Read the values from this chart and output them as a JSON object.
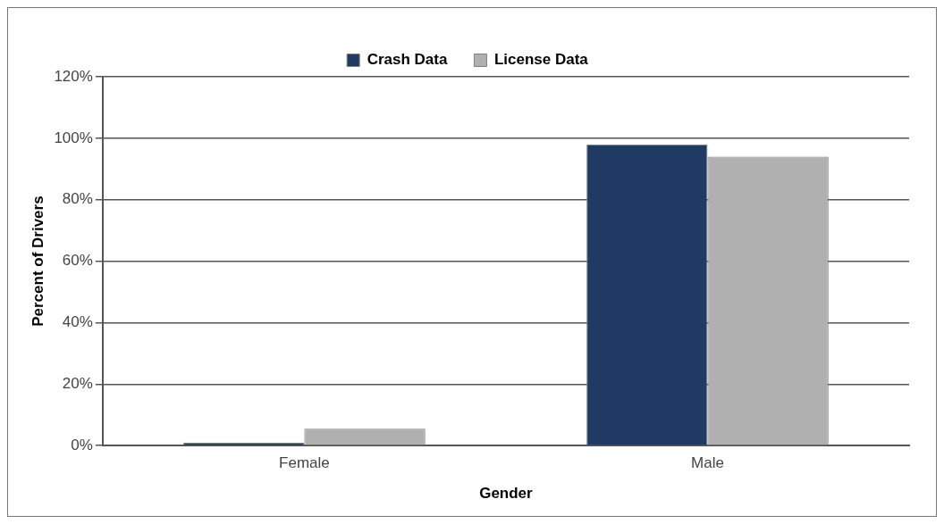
{
  "chart_data": {
    "type": "bar",
    "xlabel": "Gender",
    "ylabel": "Percent of Drivers",
    "categories": [
      "Female",
      "Male"
    ],
    "series": [
      {
        "name": "Crash Data",
        "color": "#1f3b63",
        "values": [
          1,
          98
        ]
      },
      {
        "name": "License Data",
        "color": "#b0b0b0",
        "values": [
          5.5,
          94
        ]
      }
    ],
    "ylim": [
      0,
      120
    ],
    "yticks": [
      {
        "value": 0,
        "label": "0%"
      },
      {
        "value": 20,
        "label": "20%"
      },
      {
        "value": 40,
        "label": "40%"
      },
      {
        "value": 60,
        "label": "60%"
      },
      {
        "value": 80,
        "label": "80%"
      },
      {
        "value": 100,
        "label": "100%"
      },
      {
        "value": 120,
        "label": "120%"
      }
    ],
    "grid": "y",
    "legend": "top"
  }
}
